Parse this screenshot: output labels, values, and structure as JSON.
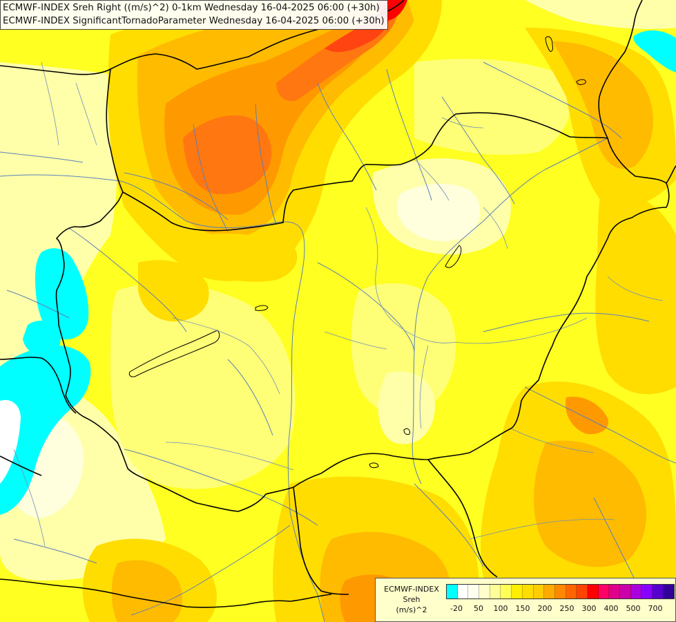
{
  "titles": {
    "line1": "ECMWF-INDEX Sreh Right ((m/s)^2) 0-1km Wednesday 16-04-2025 06:00 (+30h)",
    "line2": "ECMWF-INDEX SignificantTornadoParameter Wednesday 16-04-2025 06:00 (+30h)"
  },
  "legend": {
    "line1": "ECMWF-INDEX",
    "line2": "Sreh",
    "line3": "(m/s)^2",
    "colors": [
      "#00ffff",
      "#ffffff",
      "#ffffee",
      "#ffffcc",
      "#ffff99",
      "#ffff55",
      "#ffee00",
      "#ffdd00",
      "#ffcc00",
      "#ffaa00",
      "#ff8800",
      "#ff6600",
      "#ff4400",
      "#ff0000",
      "#ff0066",
      "#dd0088",
      "#cc00aa",
      "#aa00dd",
      "#8800ff",
      "#5500cc",
      "#330099"
    ],
    "ticks": [
      "-20",
      "50",
      "100",
      "150",
      "200",
      "250",
      "300",
      "400",
      "500",
      "700"
    ]
  },
  "field_colors": {
    "very_light": "#ffffdd",
    "light": "#ffffaa",
    "pale_yellow": "#ffff77",
    "yellow": "#ffff22",
    "gold": "#ffdd00",
    "amber": "#ffbb00",
    "orange": "#ff9900",
    "dark_orange": "#ff7711",
    "red_orange": "#ff4411",
    "red": "#ff0000",
    "cyan": "#00ffff",
    "white": "#ffffff"
  }
}
